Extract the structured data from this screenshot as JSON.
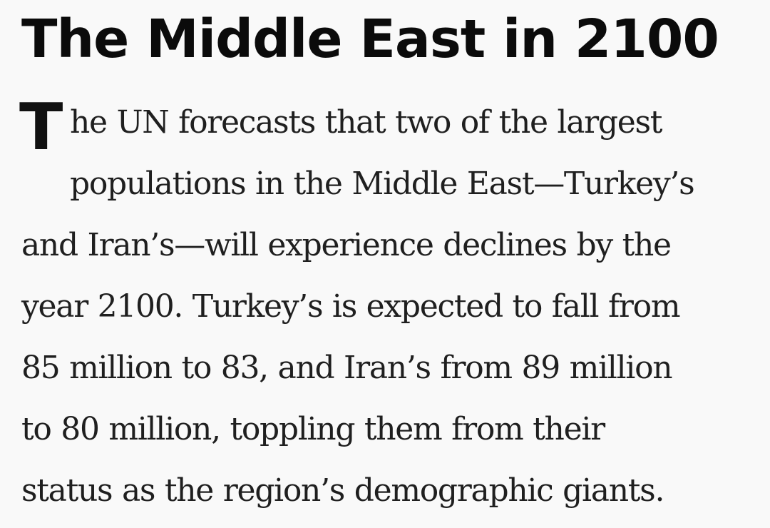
{
  "article": {
    "headline": "The Middle East in 2100",
    "drop_cap": "T",
    "lines": [
      "he UN forecasts that two of the largest",
      "populations in the Middle East—Turkey’s",
      "and Iran’s—will experience declines by the",
      "year 2100. Turkey’s is expected to fall from",
      "85 million to 83, and Iran’s from 89 million",
      "to 80 million, toppling them from their",
      "status as the region’s demographic giants."
    ]
  }
}
